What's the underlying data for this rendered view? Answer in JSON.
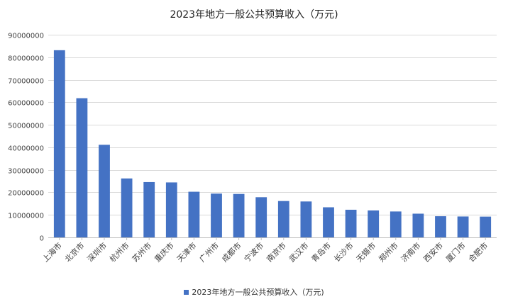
{
  "chart_data": {
    "type": "bar",
    "title": "2023年地方一般公共预算收入（万元)",
    "categories": [
      "上海市",
      "北京市",
      "深圳市",
      "杭州市",
      "苏州市",
      "重庆市",
      "天津市",
      "广州市",
      "成都市",
      "宁波市",
      "南京市",
      "武汉市",
      "青岛市",
      "长沙市",
      "无锡市",
      "郑州市",
      "济南市",
      "西安市",
      "厦门市",
      "合肥市"
    ],
    "series": [
      {
        "name": "2023年地方一般公共预算收入（万元)",
        "values": [
          83121000,
          61815000,
          41121000,
          26173000,
          24563000,
          24410000,
          20273000,
          19446000,
          19296000,
          17841000,
          16151000,
          15950000,
          13371000,
          12275000,
          11960000,
          11511000,
          10537000,
          9407000,
          9292000,
          9235000
        ]
      }
    ],
    "ylim": [
      0,
      90000000
    ],
    "yticks": [
      0,
      10000000,
      20000000,
      30000000,
      40000000,
      50000000,
      60000000,
      70000000,
      80000000,
      90000000
    ],
    "grid": true,
    "legend": "bottom",
    "bar_color": "#4472C4"
  }
}
